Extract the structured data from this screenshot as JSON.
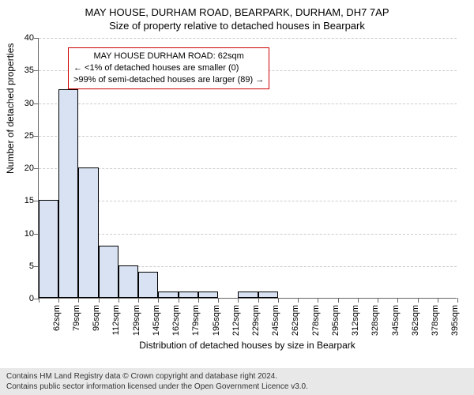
{
  "title_main": "MAY HOUSE, DURHAM ROAD, BEARPARK, DURHAM, DH7 7AP",
  "title_sub": "Size of property relative to detached houses in Bearpark",
  "y_axis_label": "Number of detached properties",
  "x_axis_label": "Distribution of detached houses by size in Bearpark",
  "chart": {
    "type": "histogram",
    "ylim": [
      0,
      40
    ],
    "ytick_step": 5,
    "bar_fill": "#d8e2f2",
    "bar_border": "#000000",
    "grid_color": "#cccccc",
    "background": "#ffffff",
    "categories": [
      "62sqm",
      "79sqm",
      "95sqm",
      "112sqm",
      "129sqm",
      "145sqm",
      "162sqm",
      "179sqm",
      "195sqm",
      "212sqm",
      "229sqm",
      "245sqm",
      "262sqm",
      "278sqm",
      "295sqm",
      "312sqm",
      "328sqm",
      "345sqm",
      "362sqm",
      "378sqm",
      "395sqm"
    ],
    "values": [
      15,
      32,
      20,
      8,
      5,
      4,
      1,
      1,
      1,
      0,
      1,
      1,
      0,
      0,
      0,
      0,
      0,
      0,
      0,
      0,
      0
    ],
    "label_fontsize": 11,
    "title_fontsize": 13
  },
  "annotation": {
    "line1": "MAY HOUSE DURHAM ROAD: 62sqm",
    "line2": "← <1% of detached houses are smaller (0)",
    "line3": ">99% of semi-detached houses are larger (89) →",
    "border_color": "#cc0000"
  },
  "footer": {
    "line1": "Contains HM Land Registry data © Crown copyright and database right 2024.",
    "line2": "Contains public sector information licensed under the Open Government Licence v3.0."
  }
}
